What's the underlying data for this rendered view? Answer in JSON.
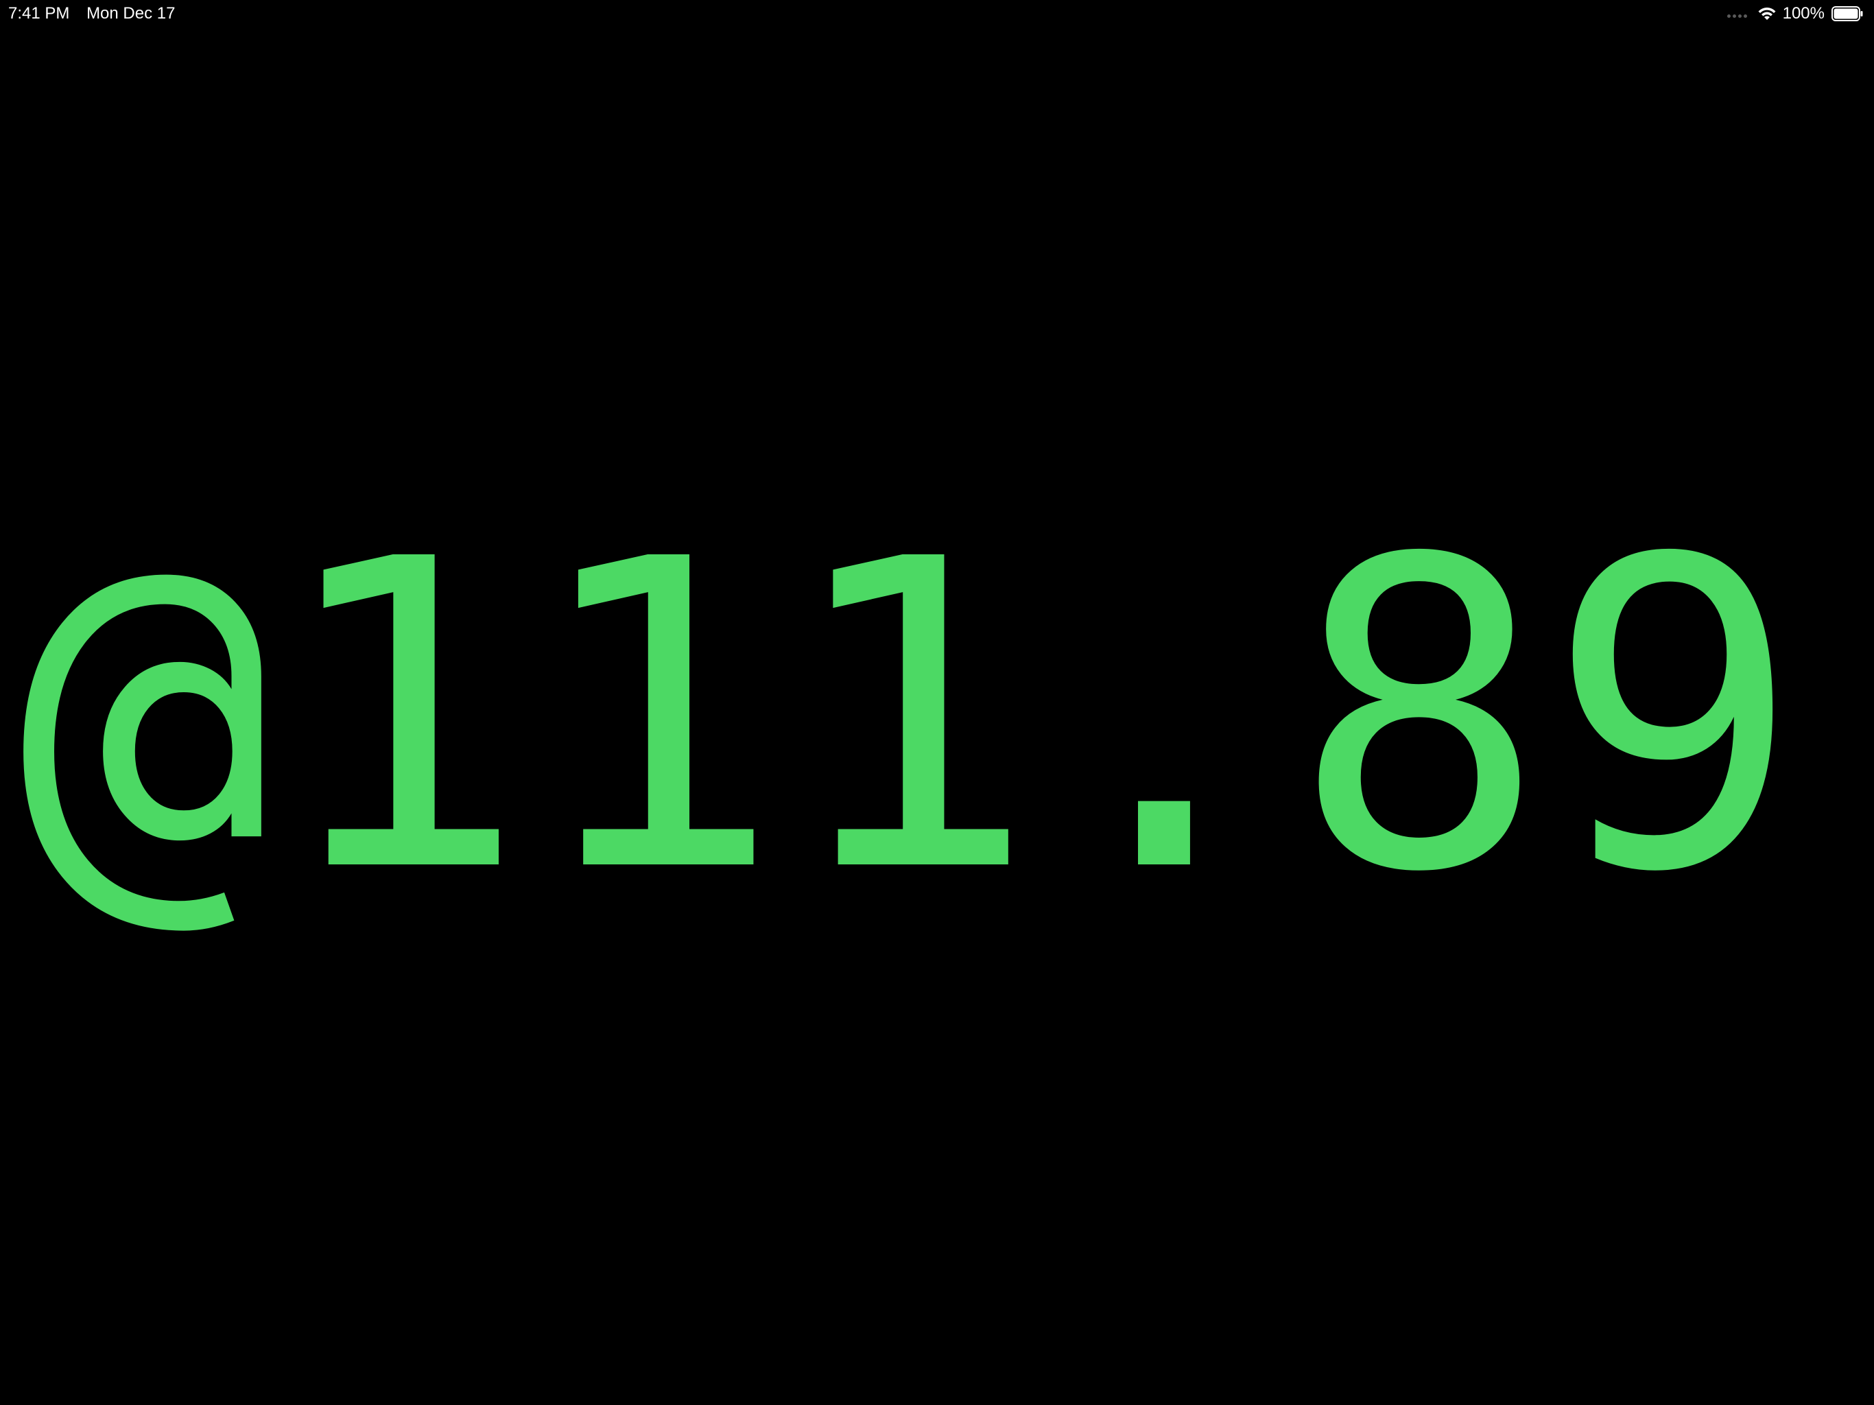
{
  "status_bar": {
    "time": "7:41 PM",
    "date": "Mon Dec 17",
    "battery_percent": "100%",
    "battery_level": 1.0,
    "wifi_icon": "wifi-icon",
    "battery_icon": "battery-icon",
    "signal_icon": "cellular-signal-icon"
  },
  "display": {
    "value": "@111.89"
  },
  "colors": {
    "background": "#000000",
    "display_text": "#4cd964",
    "status_text": "#ffffff"
  }
}
